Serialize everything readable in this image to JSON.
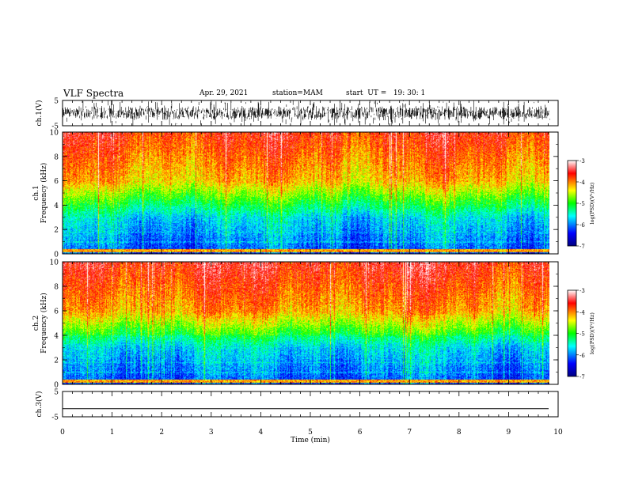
{
  "header": {
    "title": "VLF Spectra",
    "date": "Apr. 29, 2021",
    "station": "station=MAM",
    "start": "start  UT =   19: 30: 1"
  },
  "colors": {
    "low": "#0000a0",
    "mid": "#00ff80",
    "high": "#ff2000",
    "waveform": "#000000"
  },
  "chart_data": [
    {
      "type": "line",
      "name": "ch1-waveform",
      "ylabel": "ch.1(V)",
      "ylim": [
        -5,
        5
      ],
      "yticks": [
        "5",
        "-5"
      ]
    },
    {
      "type": "heatmap",
      "name": "ch1-spectrogram",
      "ylabel_line1": "ch.1",
      "ylabel_line2": "Frequency (kHz)",
      "ylim": [
        0,
        10
      ],
      "yticks": [
        "0",
        "2",
        "4",
        "6",
        "8",
        "10"
      ],
      "colorbar": {
        "label": "log(PSD)(V²/Hz)",
        "range": [
          -7,
          -3
        ],
        "ticks": [
          "-3",
          "-4",
          "-5",
          "-6",
          "-7"
        ]
      }
    },
    {
      "type": "heatmap",
      "name": "ch2-spectrogram",
      "ylabel_line1": "ch.2",
      "ylabel_line2": "Frequency (kHz)",
      "ylim": [
        0,
        10
      ],
      "yticks": [
        "0",
        "2",
        "4",
        "6",
        "8",
        "10"
      ],
      "colorbar": {
        "label": "log(PSD)(V²/Hz)",
        "range": [
          -7,
          -3
        ],
        "ticks": [
          "-3",
          "-4",
          "-5",
          "-6",
          "-7"
        ]
      }
    },
    {
      "type": "line",
      "name": "ch3-waveform",
      "ylabel": "ch.3(V)",
      "ylim": [
        -5,
        5
      ],
      "yticks": [
        "5",
        "-5"
      ],
      "values": [
        -1.8,
        -1.8
      ]
    }
  ],
  "xaxis": {
    "label": "Time  (min)",
    "range": [
      0,
      10
    ],
    "ticks": [
      "0",
      "1",
      "2",
      "3",
      "4",
      "5",
      "6",
      "7",
      "8",
      "9",
      "10"
    ],
    "data_end": 9.83
  }
}
